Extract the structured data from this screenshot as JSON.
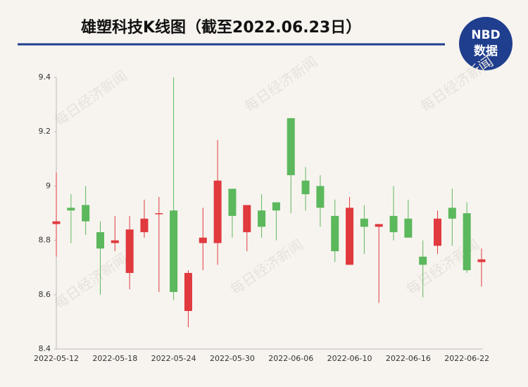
{
  "chart_data": {
    "type": "candlestick",
    "title": "雄塑科技K线图（截至2022.06.23日）",
    "logo": {
      "top": "NBD",
      "bottom": "数据"
    },
    "watermark": "每日经济新闻",
    "categories": [
      "2022-05-12",
      null,
      null,
      null,
      "2022-05-18",
      null,
      null,
      null,
      "2022-05-24",
      null,
      null,
      null,
      "2022-05-30",
      null,
      null,
      null,
      "2022-06-06",
      null,
      null,
      null,
      "2022-06-10",
      null,
      null,
      null,
      "2022-06-16",
      null,
      null,
      null,
      "2022-06-22",
      null
    ],
    "open": [
      8.86,
      8.92,
      8.93,
      8.83,
      8.79,
      8.68,
      8.83,
      8.9,
      8.91,
      8.54,
      8.79,
      8.79,
      8.99,
      8.83,
      8.91,
      8.94,
      9.25,
      9.02,
      9.0,
      8.89,
      8.71,
      8.88,
      8.85,
      8.89,
      8.88,
      8.74,
      8.78,
      8.92,
      8.9,
      8.72
    ],
    "high": [
      9.05,
      8.97,
      9.0,
      8.87,
      8.89,
      8.89,
      8.95,
      8.96,
      9.4,
      8.69,
      8.92,
      9.17,
      8.99,
      8.93,
      8.97,
      8.94,
      9.25,
      9.07,
      9.04,
      8.95,
      8.96,
      8.93,
      8.86,
      9.0,
      8.95,
      8.8,
      8.91,
      8.99,
      8.94,
      8.77
    ],
    "low": [
      8.74,
      8.79,
      8.82,
      8.6,
      8.76,
      8.62,
      8.81,
      8.61,
      8.58,
      8.48,
      8.69,
      8.71,
      8.81,
      8.76,
      8.81,
      8.8,
      8.9,
      8.91,
      8.85,
      8.72,
      8.71,
      8.75,
      8.57,
      8.8,
      8.81,
      8.59,
      8.75,
      8.78,
      8.68,
      8.63
    ],
    "close": [
      8.87,
      8.91,
      8.87,
      8.77,
      8.8,
      8.84,
      8.88,
      8.9,
      8.61,
      8.68,
      8.81,
      9.02,
      8.89,
      8.93,
      8.85,
      8.91,
      9.04,
      8.97,
      8.92,
      8.76,
      8.92,
      8.85,
      8.86,
      8.83,
      8.81,
      8.71,
      8.88,
      8.88,
      8.69,
      8.73
    ],
    "up_color": "#e0393e",
    "down_color": "#5cb85c",
    "ylim": [
      8.4,
      9.4
    ],
    "yticks": [
      8.4,
      8.6,
      8.8,
      9,
      9.2,
      9.4
    ],
    "grid": false
  }
}
